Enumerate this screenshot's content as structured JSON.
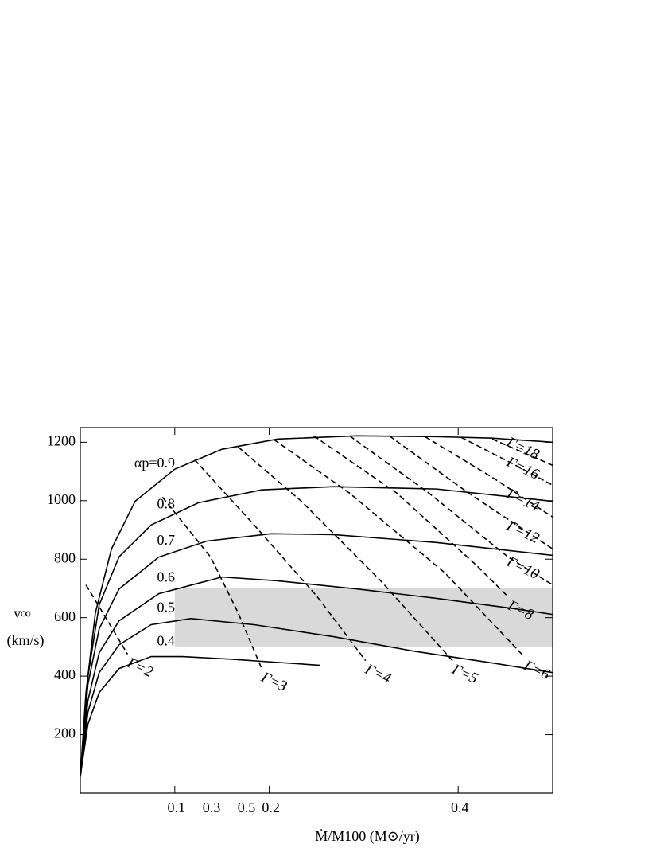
{
  "chart_data": {
    "type": "line",
    "x_label": "Ṁ/M100 (M⊙/yr)",
    "y_label": [
      "v∞",
      "(km/s)"
    ],
    "xlim": [
      0,
      0.5
    ],
    "ylim": [
      0,
      1250
    ],
    "xticks": [
      0.1,
      0.2,
      0.4
    ],
    "annotations": [
      "0.3",
      "0.5"
    ],
    "yticks": [
      200,
      400,
      600,
      800,
      1000,
      1200
    ],
    "shaded_region": {
      "xlim": [
        0.1,
        0.5
      ],
      "ylim": [
        500,
        700
      ],
      "color": "#d9d9d9"
    },
    "series": [
      {
        "name": "αp=0.9",
        "style": "solid",
        "color": "#000",
        "x": [
          0,
          0.006,
          0.016,
          0.033,
          0.058,
          0.1,
          0.15,
          0.209,
          0.293,
          0.377,
          0.436,
          0.5
        ],
        "values": [
          57,
          344,
          617,
          835,
          998,
          1108,
          1176,
          1211,
          1222,
          1219,
          1214,
          1200
        ]
      },
      {
        "name": "0.8",
        "style": "solid",
        "color": "#000",
        "x": [
          0,
          0.008,
          0.02,
          0.041,
          0.075,
          0.125,
          0.192,
          0.268,
          0.377,
          0.5
        ],
        "values": [
          57,
          398,
          644,
          808,
          917,
          993,
          1037,
          1048,
          1040,
          998
        ]
      },
      {
        "name": "0.7",
        "style": "solid",
        "color": "#000",
        "x": [
          0,
          0.008,
          0.02,
          0.041,
          0.083,
          0.134,
          0.202,
          0.268,
          0.377,
          0.5
        ],
        "values": [
          57,
          371,
          562,
          698,
          807,
          862,
          887,
          884,
          857,
          813
        ]
      },
      {
        "name": "0.6",
        "style": "solid",
        "color": "#000",
        "x": [
          0,
          0.008,
          0.02,
          0.041,
          0.083,
          0.15,
          0.209,
          0.293,
          0.377,
          0.461,
          0.5
        ],
        "values": [
          57,
          316,
          480,
          589,
          682,
          739,
          726,
          698,
          666,
          630,
          611
        ]
      },
      {
        "name": "0.5",
        "style": "solid",
        "color": "#000",
        "x": [
          0,
          0.008,
          0.02,
          0.041,
          0.075,
          0.117,
          0.184,
          0.268,
          0.352,
          0.436,
          0.5
        ],
        "values": [
          57,
          276,
          412,
          507,
          576,
          597,
          576,
          535,
          486,
          445,
          412
        ]
      },
      {
        "name": "0.4",
        "style": "solid",
        "color": "#000",
        "x": [
          0,
          0.008,
          0.02,
          0.041,
          0.075,
          0.108,
          0.159,
          0.209,
          0.254
        ],
        "values": [
          57,
          235,
          344,
          426,
          467,
          467,
          458,
          447,
          437
        ]
      },
      {
        "name": "Γ=2",
        "style": "dashed",
        "color": "#000",
        "x": [
          0.006,
          0.029,
          0.05
        ],
        "values": [
          712,
          589,
          475
        ]
      },
      {
        "name": "Γ=3",
        "style": "dashed",
        "color": "#000",
        "x": [
          0.087,
          0.138,
          0.167,
          0.192
        ],
        "values": [
          1012,
          807,
          617,
          426
        ]
      },
      {
        "name": "Γ=4",
        "style": "dashed",
        "color": "#000",
        "x": [
          0.121,
          0.184,
          0.251,
          0.302
        ],
        "values": [
          1140,
          917,
          671,
          453
        ]
      },
      {
        "name": "Γ=5",
        "style": "dashed",
        "color": "#000",
        "x": [
          0.167,
          0.234,
          0.318,
          0.394
        ],
        "values": [
          1184,
          998,
          726,
          453
        ]
      },
      {
        "name": "Γ=6",
        "style": "dashed",
        "color": "#000",
        "x": [
          0.205,
          0.285,
          0.386,
          0.47
        ],
        "values": [
          1209,
          1026,
          753,
          466
        ]
      },
      {
        "name": "Γ=8",
        "style": "dashed",
        "color": "#000",
        "x": [
          0.247,
          0.335,
          0.419,
          0.453
        ],
        "values": [
          1222,
          1026,
          780,
          671
        ]
      },
      {
        "name": "Γ=10",
        "style": "dashed",
        "color": "#000",
        "x": [
          0.285,
          0.369,
          0.453,
          0.5
        ],
        "values": [
          1222,
          1026,
          807,
          712
        ]
      },
      {
        "name": "Γ=12",
        "style": "dashed",
        "color": "#000",
        "x": [
          0.327,
          0.411,
          0.5
        ],
        "values": [
          1222,
          1026,
          835
        ]
      },
      {
        "name": "Γ=14",
        "style": "dashed",
        "color": "#000",
        "x": [
          0.365,
          0.436,
          0.5
        ],
        "values": [
          1219,
          1080,
          944
        ]
      },
      {
        "name": "Γ=16",
        "style": "dashed",
        "color": "#000",
        "x": [
          0.403,
          0.461,
          0.5
        ],
        "values": [
          1217,
          1121,
          1053
        ]
      },
      {
        "name": "Γ=18",
        "style": "dashed",
        "color": "#000",
        "x": [
          0.436,
          0.5
        ],
        "values": [
          1211,
          1121
        ]
      }
    ]
  }
}
